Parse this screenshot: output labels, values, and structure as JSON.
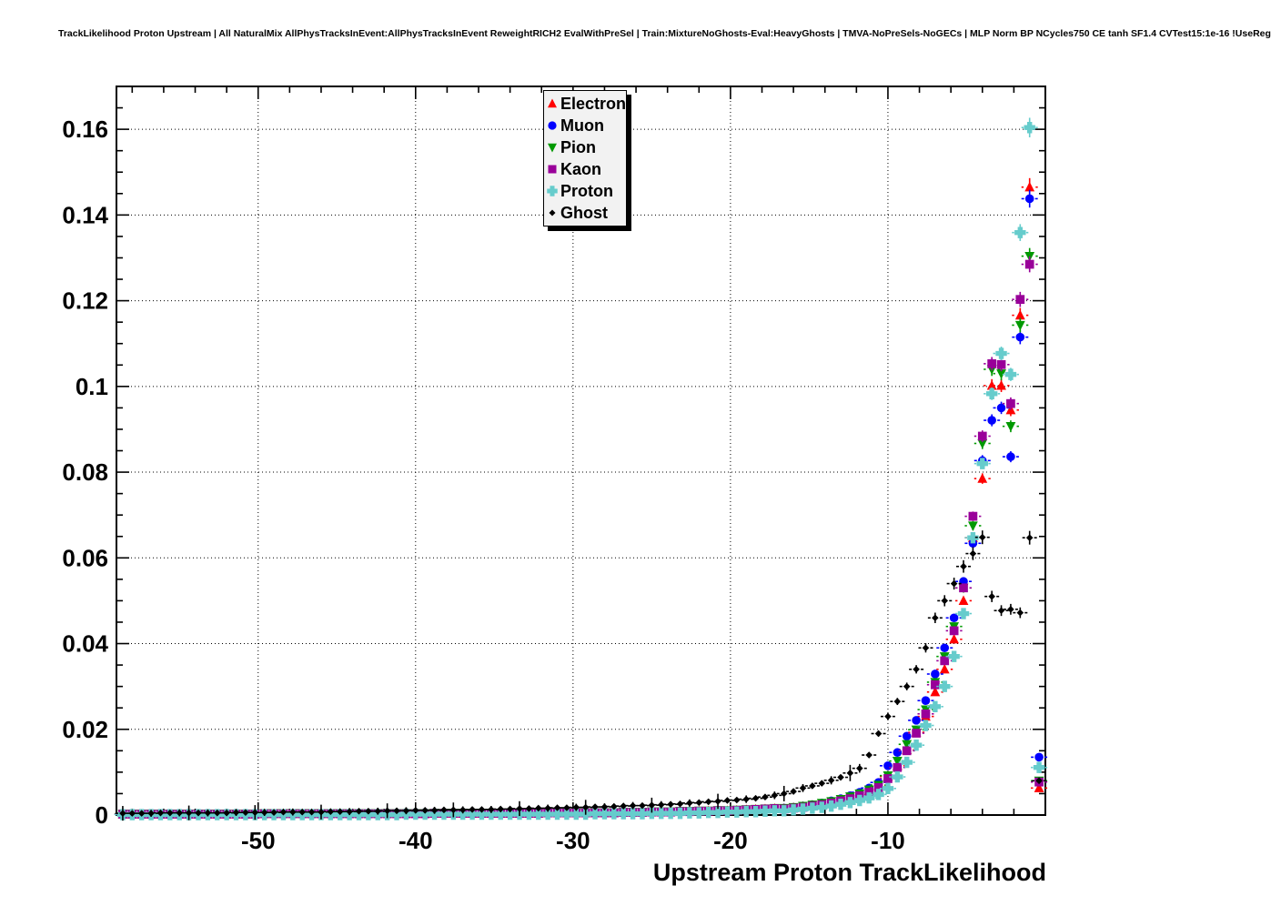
{
  "chart_data": {
    "type": "scatter",
    "title": "TrackLikelihood Proton Upstream | All NaturalMix AllPhysTracksInEvent:AllPhysTracksInEvent ReweightRICH2 EvalWithPreSel | Train:MixtureNoGhosts-Eval:HeavyGhosts | TMVA-NoPreSels-NoGECs | MLP Norm BP NCycles750 CE tanh SF1.4 CVTest15:1e-16 !UseReg",
    "xlabel": "Upstream Proton TrackLikelihood",
    "ylabel": "",
    "xlim": [
      -59,
      0
    ],
    "ylim": [
      0,
      0.17
    ],
    "grid": "dotted-at-major-ticks",
    "legend_position": "top-center",
    "x_axis": {
      "tick_values": [
        -50,
        -40,
        -30,
        -20,
        -10
      ],
      "tick_labels": [
        "-50",
        "-40",
        "-30",
        "-20",
        "-10"
      ],
      "minor_step": 2
    },
    "y_axis": {
      "tick_values": [
        0,
        0.02,
        0.04,
        0.06,
        0.08,
        0.1,
        0.12,
        0.14,
        0.16
      ],
      "tick_labels": [
        "0",
        "0.02",
        "0.04",
        "0.06",
        "0.08",
        "0.1",
        "0.12",
        "0.14",
        "0.16"
      ],
      "minor_step": 0.005
    },
    "bins": {
      "start": -58.6,
      "step": 0.6,
      "count": 98
    },
    "series": [
      {
        "name": "Electron",
        "color": "#ff0000",
        "marker": "triangle-up",
        "values": [
          0.0002,
          0.0002,
          0.0002,
          0.0002,
          0.0002,
          0.0002,
          0.0002,
          0.0002,
          0.0002,
          0.0002,
          0.0002,
          0.0002,
          0.0002,
          0.0002,
          0.0002,
          0.0003,
          0.0003,
          0.0003,
          0.0003,
          0.0003,
          0.0003,
          0.0003,
          0.0003,
          0.0003,
          0.0003,
          0.0003,
          0.0003,
          0.0003,
          0.0003,
          0.0003,
          0.0003,
          0.0003,
          0.0003,
          0.0004,
          0.0004,
          0.0004,
          0.0004,
          0.0004,
          0.0004,
          0.0004,
          0.0004,
          0.0004,
          0.0004,
          0.0004,
          0.0004,
          0.0005,
          0.0005,
          0.0005,
          0.0005,
          0.0005,
          0.0005,
          0.0005,
          0.0005,
          0.0006,
          0.0006,
          0.0006,
          0.0007,
          0.0007,
          0.0007,
          0.0008,
          0.0008,
          0.0009,
          0.0009,
          0.001,
          0.001,
          0.0011,
          0.0012,
          0.0013,
          0.0014,
          0.0015,
          0.0015,
          0.0017,
          0.002,
          0.0023,
          0.0026,
          0.003,
          0.0035,
          0.0041,
          0.0048,
          0.0057,
          0.0068,
          0.009,
          0.0115,
          0.0152,
          0.0193,
          0.023,
          0.0287,
          0.034,
          0.041,
          0.05,
          0.0647,
          0.0785,
          0.1002,
          0.1002,
          0.0945,
          0.1166,
          0.1465,
          0.0063
        ]
      },
      {
        "name": "Muon",
        "color": "#0000ff",
        "marker": "circle",
        "values": [
          0.0002,
          0.0002,
          0.0002,
          0.0002,
          0.0002,
          0.0002,
          0.0002,
          0.0002,
          0.0002,
          0.0002,
          0.0002,
          0.0002,
          0.0002,
          0.0002,
          0.0002,
          0.0003,
          0.0003,
          0.0003,
          0.0003,
          0.0003,
          0.0003,
          0.0003,
          0.0003,
          0.0003,
          0.0003,
          0.0003,
          0.0003,
          0.0003,
          0.0003,
          0.0003,
          0.0003,
          0.0003,
          0.0003,
          0.0004,
          0.0004,
          0.0004,
          0.0004,
          0.0004,
          0.0004,
          0.0004,
          0.0004,
          0.0004,
          0.0004,
          0.0004,
          0.0004,
          0.0005,
          0.0005,
          0.0005,
          0.0005,
          0.0005,
          0.0005,
          0.0005,
          0.0005,
          0.0006,
          0.0006,
          0.0006,
          0.0007,
          0.0007,
          0.0007,
          0.0008,
          0.0008,
          0.0009,
          0.0009,
          0.001,
          0.001,
          0.0011,
          0.0012,
          0.0013,
          0.0014,
          0.0015,
          0.0016,
          0.0018,
          0.0021,
          0.0024,
          0.0028,
          0.0033,
          0.0038,
          0.0045,
          0.0053,
          0.0063,
          0.0076,
          0.0115,
          0.0146,
          0.0184,
          0.0221,
          0.0267,
          0.0329,
          0.039,
          0.046,
          0.0545,
          0.0634,
          0.0827,
          0.0921,
          0.095,
          0.0836,
          0.1115,
          0.1438,
          0.0135
        ]
      },
      {
        "name": "Pion",
        "color": "#009900",
        "marker": "triangle-down",
        "values": [
          0.0003,
          0.0003,
          0.0003,
          0.0003,
          0.0003,
          0.0003,
          0.0003,
          0.0003,
          0.0003,
          0.0003,
          0.0003,
          0.0003,
          0.0003,
          0.0003,
          0.0003,
          0.0004,
          0.0004,
          0.0004,
          0.0004,
          0.0004,
          0.0004,
          0.0004,
          0.0004,
          0.0004,
          0.0004,
          0.0004,
          0.0004,
          0.0004,
          0.0004,
          0.0004,
          0.0004,
          0.0004,
          0.0004,
          0.0005,
          0.0005,
          0.0005,
          0.0005,
          0.0005,
          0.0005,
          0.0005,
          0.0005,
          0.0005,
          0.0005,
          0.0005,
          0.0005,
          0.0006,
          0.0006,
          0.0006,
          0.0006,
          0.0006,
          0.0006,
          0.0006,
          0.0006,
          0.0007,
          0.0007,
          0.0007,
          0.0008,
          0.0008,
          0.0008,
          0.0009,
          0.0009,
          0.001,
          0.001,
          0.0011,
          0.0011,
          0.0012,
          0.0013,
          0.0014,
          0.0015,
          0.0016,
          0.0016,
          0.0018,
          0.0021,
          0.0024,
          0.0028,
          0.0032,
          0.0037,
          0.0043,
          0.005,
          0.0059,
          0.007,
          0.0092,
          0.0126,
          0.0165,
          0.0199,
          0.0246,
          0.031,
          0.037,
          0.044,
          0.053,
          0.0675,
          0.0867,
          0.104,
          0.103,
          0.0907,
          0.1143,
          0.1304,
          0.008
        ]
      },
      {
        "name": "Kaon",
        "color": "#990099",
        "marker": "square",
        "values": [
          0.0002,
          0.0002,
          0.0002,
          0.0002,
          0.0002,
          0.0002,
          0.0002,
          0.0002,
          0.0002,
          0.0002,
          0.0002,
          0.0002,
          0.0002,
          0.0002,
          0.0002,
          0.0003,
          0.0003,
          0.0003,
          0.0003,
          0.0003,
          0.0003,
          0.0003,
          0.0003,
          0.0003,
          0.0003,
          0.0003,
          0.0003,
          0.0003,
          0.0003,
          0.0003,
          0.0003,
          0.0003,
          0.0003,
          0.0004,
          0.0004,
          0.0004,
          0.0004,
          0.0004,
          0.0004,
          0.0004,
          0.0004,
          0.0004,
          0.0004,
          0.0004,
          0.0004,
          0.0005,
          0.0005,
          0.0005,
          0.0005,
          0.0005,
          0.0005,
          0.0005,
          0.0005,
          0.0006,
          0.0006,
          0.0006,
          0.0007,
          0.0007,
          0.0007,
          0.0008,
          0.0008,
          0.0009,
          0.0009,
          0.001,
          0.001,
          0.0011,
          0.0012,
          0.0013,
          0.0014,
          0.0015,
          0.0014,
          0.0016,
          0.0018,
          0.0021,
          0.0024,
          0.0028,
          0.0033,
          0.0038,
          0.0045,
          0.0053,
          0.0064,
          0.0085,
          0.0111,
          0.015,
          0.0191,
          0.0236,
          0.0304,
          0.036,
          0.043,
          0.053,
          0.0697,
          0.0884,
          0.1053,
          0.1051,
          0.096,
          0.1203,
          0.1285,
          0.0077
        ]
      },
      {
        "name": "Proton",
        "color": "#66cccc",
        "marker": "cross",
        "values": [
          0.0001,
          0.0001,
          0.0001,
          0.0001,
          0.0001,
          0.0001,
          0.0001,
          0.0001,
          0.0001,
          0.0001,
          0.0001,
          0.0001,
          0.0001,
          0.0001,
          0.0001,
          0.0001,
          0.0001,
          0.0001,
          0.0001,
          0.0001,
          0.0001,
          0.0001,
          0.0001,
          0.0001,
          0.0001,
          0.0001,
          0.0001,
          0.0001,
          0.0001,
          0.0001,
          0.0002,
          0.0002,
          0.0002,
          0.0002,
          0.0002,
          0.0002,
          0.0002,
          0.0002,
          0.0002,
          0.0002,
          0.0002,
          0.0002,
          0.0002,
          0.0002,
          0.0002,
          0.0002,
          0.0002,
          0.0002,
          0.0002,
          0.0002,
          0.0003,
          0.0003,
          0.0003,
          0.0003,
          0.0003,
          0.0003,
          0.0004,
          0.0004,
          0.0004,
          0.0004,
          0.0005,
          0.0005,
          0.0006,
          0.0006,
          0.0007,
          0.0007,
          0.0008,
          0.0008,
          0.0009,
          0.001,
          0.001,
          0.0012,
          0.0014,
          0.0016,
          0.0018,
          0.0021,
          0.0025,
          0.0029,
          0.0034,
          0.004,
          0.0048,
          0.0062,
          0.0089,
          0.0123,
          0.0163,
          0.0209,
          0.0253,
          0.03,
          0.037,
          0.047,
          0.0647,
          0.082,
          0.0983,
          0.1077,
          0.1028,
          0.1359,
          0.1604,
          0.0111
        ]
      },
      {
        "name": "Ghost",
        "color": "#000000",
        "marker": "diamond",
        "values": [
          0.0004,
          0.0004,
          0.0004,
          0.0004,
          0.0005,
          0.0005,
          0.0005,
          0.0005,
          0.0005,
          0.0005,
          0.0005,
          0.0005,
          0.0006,
          0.0006,
          0.0006,
          0.0006,
          0.0006,
          0.0007,
          0.0007,
          0.0007,
          0.0007,
          0.0007,
          0.0008,
          0.0008,
          0.0008,
          0.0009,
          0.0009,
          0.0009,
          0.001,
          0.001,
          0.001,
          0.0011,
          0.0011,
          0.0011,
          0.0012,
          0.0012,
          0.0012,
          0.0013,
          0.0013,
          0.0013,
          0.0014,
          0.0014,
          0.0015,
          0.0015,
          0.0016,
          0.0016,
          0.0017,
          0.0017,
          0.0018,
          0.0018,
          0.0019,
          0.0019,
          0.002,
          0.0021,
          0.0022,
          0.0022,
          0.0023,
          0.0024,
          0.0025,
          0.0026,
          0.0028,
          0.0029,
          0.0031,
          0.0032,
          0.0034,
          0.0035,
          0.0037,
          0.0039,
          0.0042,
          0.0046,
          0.005,
          0.0055,
          0.0063,
          0.0068,
          0.0074,
          0.0081,
          0.0088,
          0.0098,
          0.0109,
          0.014,
          0.019,
          0.023,
          0.0265,
          0.03,
          0.034,
          0.039,
          0.046,
          0.05,
          0.054,
          0.058,
          0.061,
          0.0648,
          0.051,
          0.0477,
          0.048,
          0.0472,
          0.0647,
          0.008
        ]
      }
    ]
  }
}
